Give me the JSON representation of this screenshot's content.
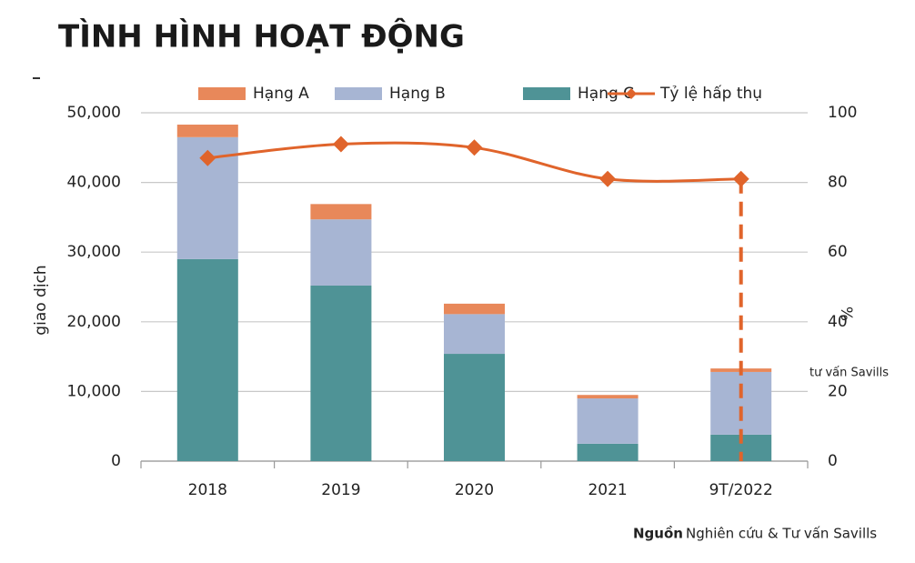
{
  "chart_data": {
    "type": "bar",
    "title": "TÌNH HÌNH HOẠT ĐỘNG",
    "y_label": "giao dịch",
    "y2_label": "%",
    "annotation": "tư vấn Savills",
    "source_label": "Nguồn",
    "source_text": "Nghiên cứu & Tư vấn Savills",
    "categories": [
      "2018",
      "2019",
      "2020",
      "2021",
      "9T/2022"
    ],
    "stacked": true,
    "grid": true,
    "legend": "top",
    "series": [
      {
        "name": "Hạng A",
        "color": "#e8885a",
        "values": [
          1800,
          2200,
          1500,
          500,
          500
        ]
      },
      {
        "name": "Hạng B",
        "color": "#a7b5d3",
        "values": [
          17500,
          9500,
          5700,
          6500,
          9000
        ]
      },
      {
        "name": "Hạng C",
        "color": "#4f9396",
        "values": [
          29000,
          25200,
          15400,
          2500,
          3800
        ]
      },
      {
        "name": "Tỷ lệ hấp thụ",
        "color": "#e0642b",
        "type": "line",
        "axis": "y2",
        "values": [
          87,
          91,
          90,
          81,
          81
        ]
      }
    ],
    "ylim": [
      0,
      50000
    ],
    "yticks": [
      0,
      {
        "value": 10000,
        "label": "10,000"
      },
      {
        "value": 20000,
        "label": "20,000"
      },
      {
        "value": 30000,
        "label": "30,000"
      },
      {
        "value": 40000,
        "label": "40,000"
      },
      {
        "value": 50000,
        "label": "50,000"
      }
    ],
    "y2lim": [
      0,
      100
    ],
    "y2ticks": [
      0,
      20,
      40,
      60,
      80,
      100
    ]
  }
}
